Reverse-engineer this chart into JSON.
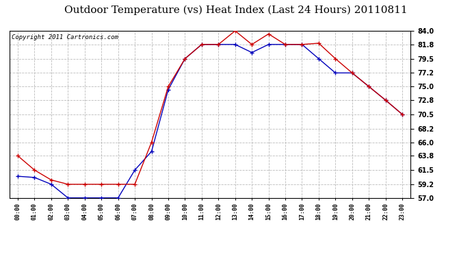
{
  "title": "Outdoor Temperature (vs) Heat Index (Last 24 Hours) 20110811",
  "copyright": "Copyright 2011 Cartronics.com",
  "hours": [
    "00:00",
    "01:00",
    "02:00",
    "03:00",
    "04:00",
    "05:00",
    "06:00",
    "07:00",
    "08:00",
    "09:00",
    "10:00",
    "11:00",
    "12:00",
    "13:00",
    "14:00",
    "15:00",
    "16:00",
    "17:00",
    "18:00",
    "19:00",
    "20:00",
    "21:00",
    "22:00",
    "23:00"
  ],
  "temp": [
    60.5,
    60.3,
    59.2,
    57.0,
    57.0,
    57.0,
    57.0,
    61.5,
    64.5,
    74.5,
    79.5,
    81.8,
    81.8,
    81.8,
    80.5,
    81.8,
    81.8,
    81.8,
    79.5,
    77.2,
    77.2,
    75.0,
    72.8,
    70.5
  ],
  "heat_index": [
    63.8,
    61.5,
    59.9,
    59.2,
    59.2,
    59.2,
    59.2,
    59.2,
    66.0,
    75.0,
    79.5,
    81.8,
    81.8,
    84.0,
    81.8,
    83.5,
    81.8,
    81.8,
    82.0,
    79.5,
    77.2,
    75.0,
    72.8,
    70.5
  ],
  "ylim_min": 57.0,
  "ylim_max": 84.0,
  "yticks": [
    57.0,
    59.2,
    61.5,
    63.8,
    66.0,
    68.2,
    70.5,
    72.8,
    75.0,
    77.2,
    79.5,
    81.8,
    84.0
  ],
  "temp_color": "#0000bb",
  "heat_color": "#cc0000",
  "bg_color": "#ffffff",
  "plot_bg_color": "#ffffff",
  "grid_color": "#bbbbbb",
  "title_fontsize": 11,
  "copyright_fontsize": 6.5
}
